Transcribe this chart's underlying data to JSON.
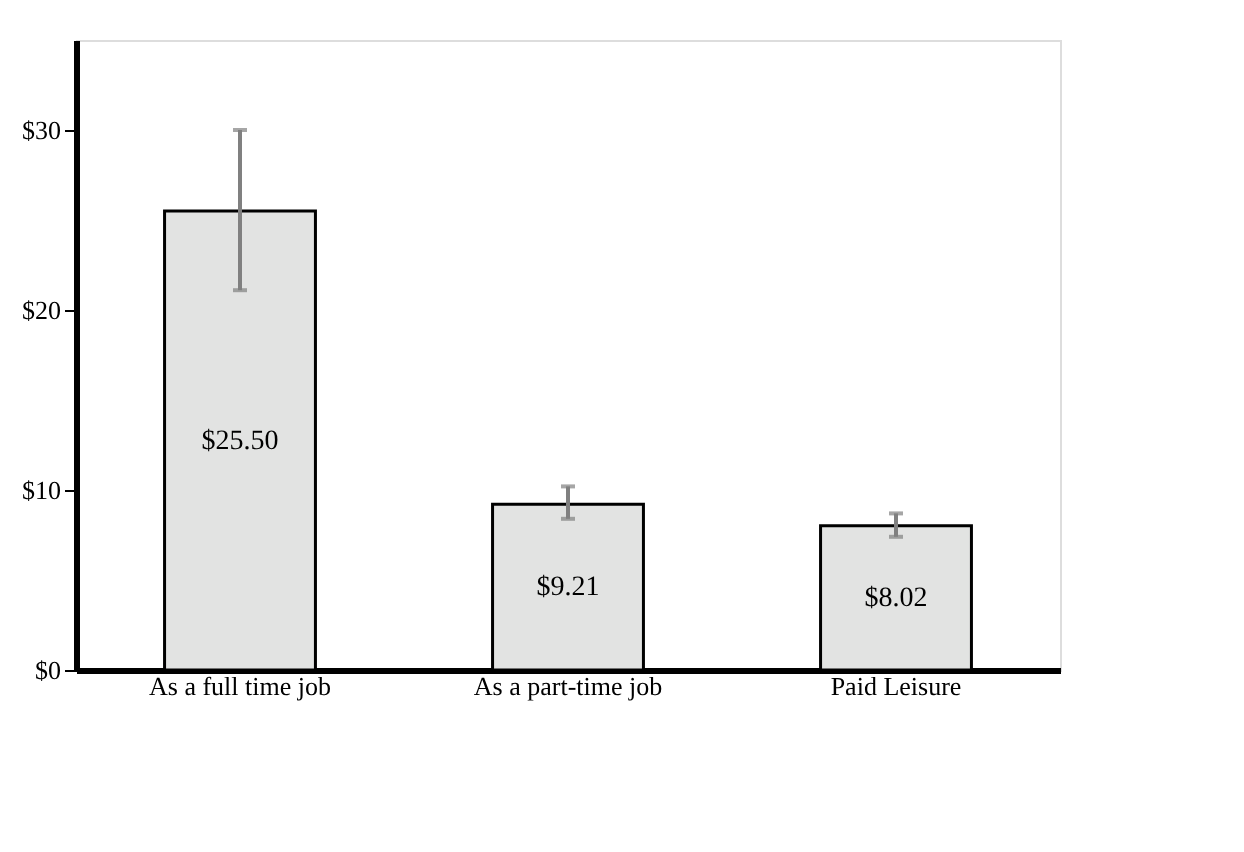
{
  "chart_data": {
    "type": "bar",
    "categories": [
      "As a full time job",
      "As a part-time job",
      "Paid Leisure"
    ],
    "values": [
      25.5,
      9.21,
      8.02
    ],
    "value_labels": [
      "$25.50",
      "$9.21",
      "$8.02"
    ],
    "errors": [
      [
        21.1,
        30.0
      ],
      [
        8.4,
        10.2
      ],
      [
        7.4,
        8.7
      ]
    ],
    "color": "#e2e3e2",
    "ylim": [
      0,
      35
    ],
    "yticks": [
      {
        "value": 0,
        "label": "$0"
      },
      {
        "value": 10,
        "label": "$10"
      },
      {
        "value": 20,
        "label": "$20"
      },
      {
        "value": 30,
        "label": "$30"
      }
    ],
    "grid": false
  }
}
